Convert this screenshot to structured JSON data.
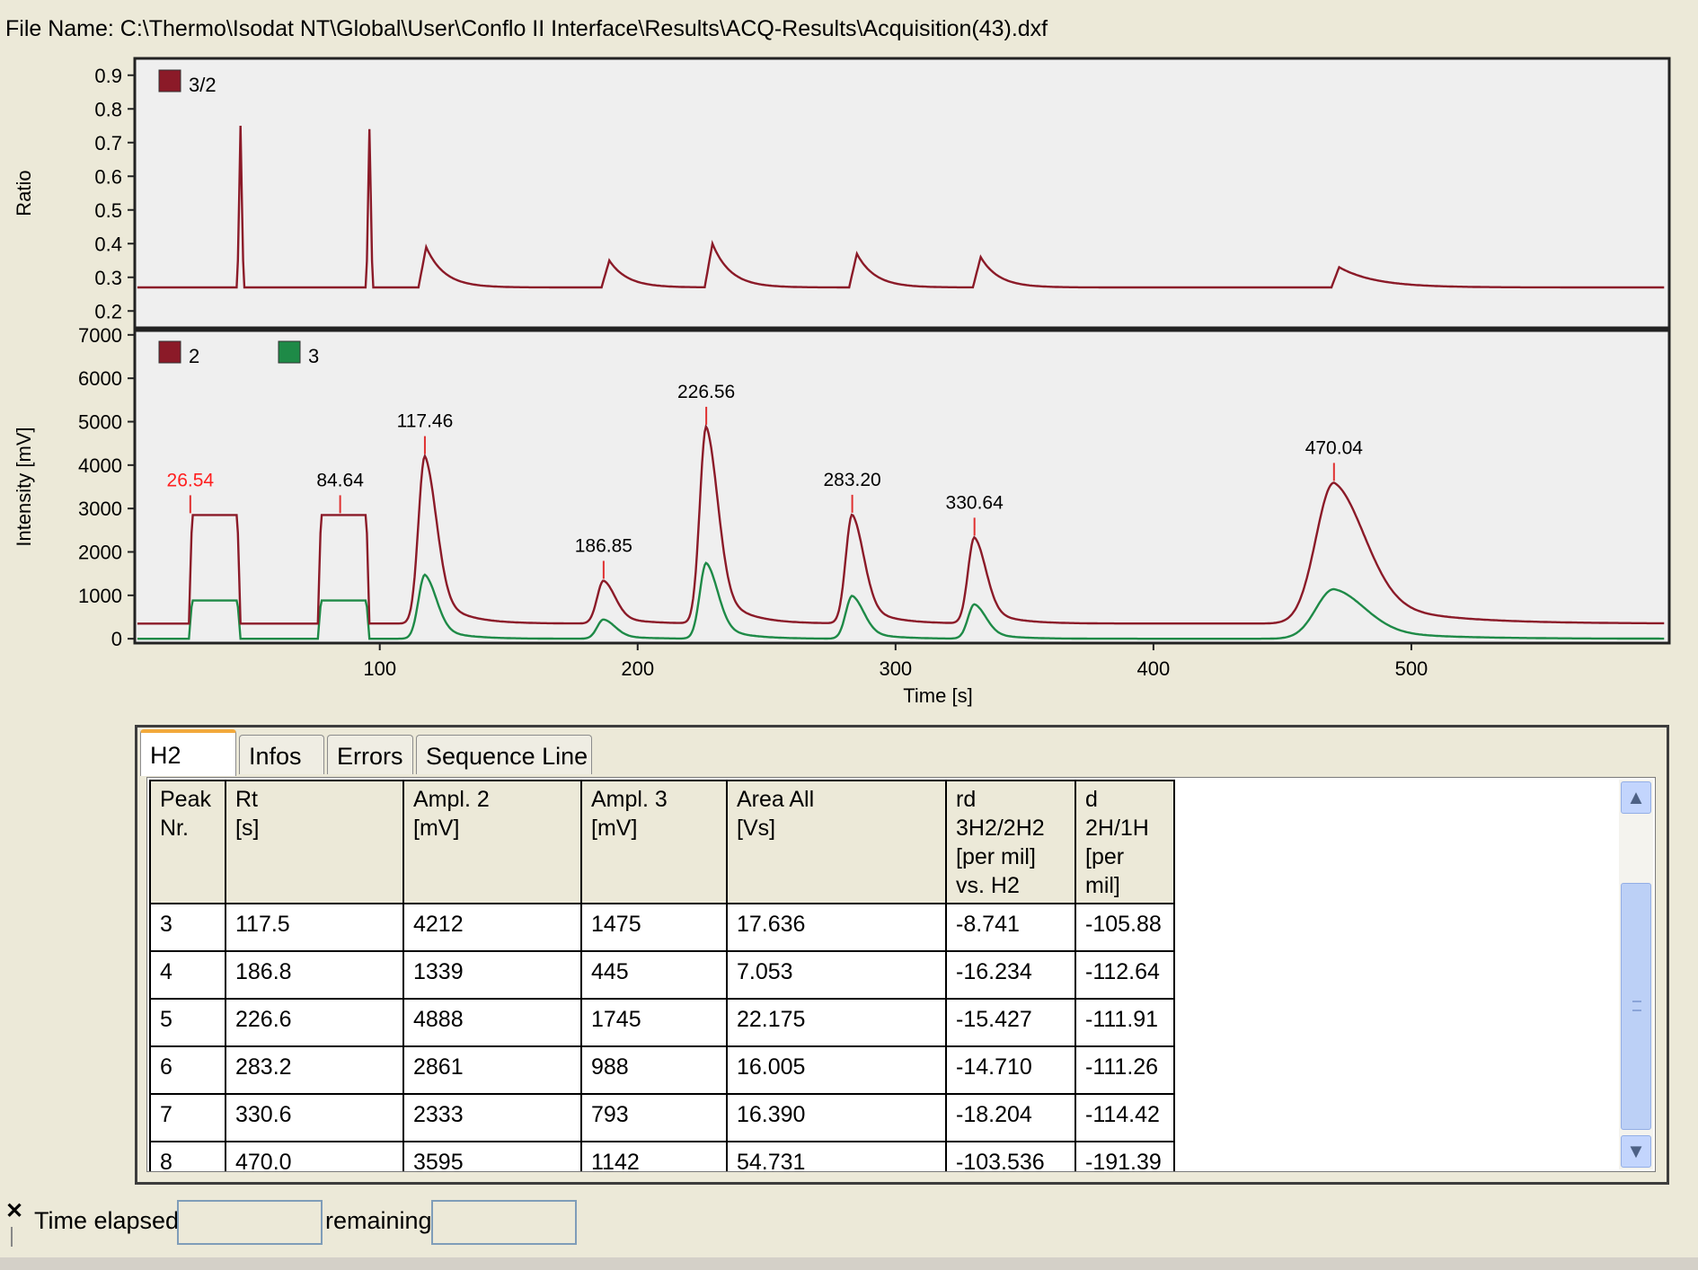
{
  "file_name": "File Name: C:\\Thermo\\Isodat NT\\Global\\User\\Conflo II Interface\\Results\\ACQ-Results\\Acquisition(43).dxf",
  "colors": {
    "ch2": "#8b1a28",
    "ch3": "#1e8a47",
    "peak_label_first": "#ff2020"
  },
  "chart_data": [
    {
      "type": "line",
      "ylabel": "Ratio",
      "ylim": [
        0.15,
        0.95
      ],
      "y_ticks": [
        "0.9",
        "0.8",
        "0.7",
        "0.6",
        "0.5",
        "0.4",
        "0.3",
        "0.2"
      ],
      "series": [
        {
          "name": "3/2",
          "color": "#8b1a28"
        }
      ],
      "baseline": 0.27,
      "spikes": [
        {
          "x": 46,
          "y": 0.75
        },
        {
          "x": 96,
          "y": 0.74
        }
      ],
      "humps": [
        {
          "x": 118,
          "y": 0.39
        },
        {
          "x": 189,
          "y": 0.35
        },
        {
          "x": 229,
          "y": 0.4
        },
        {
          "x": 285,
          "y": 0.37
        },
        {
          "x": 333,
          "y": 0.36
        },
        {
          "x": 472,
          "y": 0.33
        }
      ],
      "grid": false,
      "legend": "top-left"
    },
    {
      "type": "line",
      "xlabel": "Time [s]",
      "ylabel": "Intensity [mV]",
      "xlim": [
        5,
        600
      ],
      "ylim": [
        -100,
        7100
      ],
      "x_ticks": [
        "100",
        "200",
        "300",
        "400",
        "500"
      ],
      "y_ticks": [
        "7000",
        "6000",
        "5000",
        "4000",
        "3000",
        "2000",
        "1000",
        "0"
      ],
      "series": [
        {
          "name": "2",
          "color": "#8b1a28"
        },
        {
          "name": "3",
          "color": "#1e8a47"
        }
      ],
      "square_peaks": [
        {
          "label": "26.54",
          "start": 26,
          "end": 46,
          "top2": 2850,
          "top3": 880
        },
        {
          "label": "84.64",
          "start": 76,
          "end": 96,
          "top2": 2850,
          "top3": 880
        }
      ],
      "peaks": [
        {
          "label": "117.46",
          "rt": 117.5,
          "amp2": 4212,
          "amp3": 1475
        },
        {
          "label": "186.85",
          "rt": 186.8,
          "amp2": 1339,
          "amp3": 445
        },
        {
          "label": "226.56",
          "rt": 226.6,
          "amp2": 4888,
          "amp3": 1745
        },
        {
          "label": "283.20",
          "rt": 283.2,
          "amp2": 2861,
          "amp3": 988
        },
        {
          "label": "330.64",
          "rt": 330.6,
          "amp2": 2333,
          "amp3": 793
        },
        {
          "label": "470.04",
          "rt": 470.0,
          "amp2": 3595,
          "amp3": 1142
        }
      ],
      "grid": false,
      "legend": "top-left"
    }
  ],
  "tabs": [
    "H2",
    "Infos",
    "Errors",
    "Sequence Line"
  ],
  "table": {
    "headers": [
      [
        "Peak",
        "Nr."
      ],
      [
        "Rt",
        "[s]"
      ],
      [
        "Ampl. 2",
        "[mV]"
      ],
      [
        "Ampl. 3",
        "[mV]"
      ],
      [
        "Area All",
        "[Vs]"
      ],
      [
        "rd",
        "3H2/2H2",
        "[per mil]",
        "vs. H2"
      ],
      [
        "d",
        "2H/1H",
        "[per",
        "mil]"
      ]
    ],
    "rows": [
      [
        "3",
        "117.5",
        "4212",
        "1475",
        "17.636",
        "-8.741",
        "-105.88"
      ],
      [
        "4",
        "186.8",
        "1339",
        "445",
        "7.053",
        "-16.234",
        "-112.64"
      ],
      [
        "5",
        "226.6",
        "4888",
        "1745",
        "22.175",
        "-15.427",
        "-111.91"
      ],
      [
        "6",
        "283.2",
        "2861",
        "988",
        "16.005",
        "-14.710",
        "-111.26"
      ],
      [
        "7",
        "330.6",
        "2333",
        "793",
        "16.390",
        "-18.204",
        "-114.42"
      ],
      [
        "8",
        "470.0",
        "3595",
        "1142",
        "54.731",
        "-103.536",
        "-191.39"
      ]
    ]
  },
  "status": {
    "close_symbol": "✕",
    "elapsed_label": "Time elapsed",
    "elapsed_value": "",
    "remaining_label": "remaining",
    "remaining_value": ""
  },
  "icons": {
    "scroll_up": "up-arrow-icon",
    "scroll_down": "down-arrow-icon",
    "close": "close-icon"
  }
}
